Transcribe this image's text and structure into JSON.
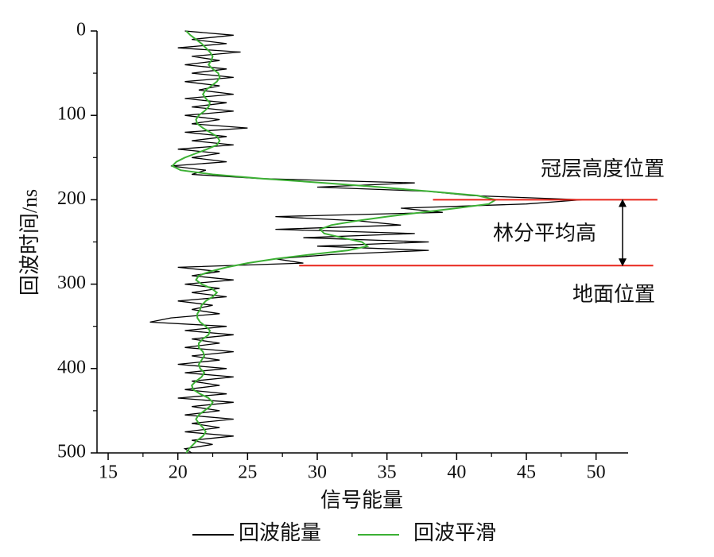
{
  "chart_data": {
    "type": "line",
    "xlabel": "信号能量",
    "ylabel": "回波时间/ns",
    "xlim": [
      14.2,
      52.3
    ],
    "xticks": [
      15,
      20,
      25,
      30,
      35,
      40,
      45,
      50
    ],
    "xminor": [
      17.5,
      22.5,
      27.5,
      32.5,
      37.5,
      42.5,
      47.5
    ],
    "ylim": [
      0,
      500
    ],
    "yticks": [
      0,
      100,
      200,
      300,
      400,
      500
    ],
    "yminor": [
      50,
      150,
      250,
      350,
      450
    ],
    "y_inverted": true,
    "y": [
      0,
      5,
      10,
      15,
      20,
      25,
      30,
      35,
      40,
      45,
      50,
      55,
      60,
      65,
      70,
      75,
      80,
      85,
      90,
      95,
      100,
      105,
      110,
      115,
      120,
      125,
      130,
      135,
      140,
      145,
      150,
      155,
      160,
      165,
      170,
      175,
      180,
      185,
      190,
      195,
      200,
      205,
      210,
      215,
      220,
      225,
      230,
      235,
      240,
      245,
      250,
      255,
      260,
      265,
      270,
      275,
      280,
      285,
      290,
      295,
      300,
      305,
      310,
      315,
      320,
      325,
      330,
      335,
      340,
      345,
      350,
      355,
      360,
      365,
      370,
      375,
      380,
      385,
      390,
      395,
      400,
      405,
      410,
      415,
      420,
      425,
      430,
      435,
      440,
      445,
      450,
      455,
      460,
      465,
      470,
      475,
      480,
      485,
      490,
      495,
      500
    ],
    "series": [
      {
        "name": "回波能量",
        "color": "#000000",
        "values": [
          20.5,
          24,
          21,
          23.5,
          20,
          24.5,
          21,
          23,
          20.5,
          23.5,
          21,
          24,
          20.5,
          23,
          21.5,
          24,
          20.5,
          23.5,
          21,
          24,
          20.5,
          23,
          21,
          25,
          20.5,
          23.5,
          21,
          24,
          20,
          23,
          21,
          23.5,
          19.5,
          22,
          21,
          26,
          37,
          30,
          38,
          41,
          49,
          45,
          36,
          39,
          27,
          33,
          36,
          27,
          37,
          29,
          38,
          30,
          38,
          31,
          27,
          29,
          20,
          23,
          21,
          24,
          20.5,
          23,
          21,
          23.5,
          20,
          22.5,
          21,
          23,
          19.5,
          18,
          23.5,
          20.5,
          24,
          21,
          23,
          20.5,
          24,
          21,
          23,
          20,
          23.5,
          20.5,
          24,
          21,
          23,
          20.5,
          23.5,
          20,
          24,
          21,
          23,
          20.5,
          24,
          21,
          23,
          20.5,
          24,
          21,
          22.5,
          20.5,
          21
        ]
      },
      {
        "name": "回波平滑",
        "color": "#3cb034",
        "values": [
          20.6,
          20.9,
          21.3,
          21.7,
          22,
          22.3,
          22.5,
          22.4,
          22.2,
          22.5,
          22.9,
          23,
          22.8,
          22.4,
          22,
          21.8,
          22,
          22.3,
          22.2,
          21.9,
          21.5,
          21.3,
          21.4,
          21.8,
          22.3,
          22.8,
          23,
          22.8,
          22.1,
          21.3,
          20.5,
          19.9,
          19.6,
          20.2,
          22.5,
          26,
          30.5,
          34.5,
          38,
          41.5,
          42.8,
          42.3,
          40,
          37.5,
          35,
          32.8,
          31,
          30.2,
          30.5,
          31.8,
          33.2,
          33.6,
          32.2,
          29.5,
          27,
          25,
          23.5,
          22.3,
          21.5,
          21.3,
          21.7,
          22.4,
          22.8,
          22.5,
          22,
          21.7,
          21.6,
          21.4,
          21.4,
          21.6,
          22,
          22.3,
          22.2,
          21.8,
          21.5,
          21.5,
          21.8,
          21.9,
          21.7,
          21.5,
          21.6,
          21.9,
          21.7,
          21.3,
          21,
          21.1,
          21.6,
          22.2,
          22.5,
          22.3,
          21.9,
          21.5,
          21.3,
          21.5,
          21.8,
          22,
          21.8,
          21.4,
          21.1,
          20.8,
          20.6
        ]
      }
    ],
    "reference_lines": [
      {
        "label": "冠层高度位置",
        "y": 200,
        "x": [
          38.3,
          54.4
        ],
        "color": "#e8261c"
      },
      {
        "label": "地面位置",
        "y": 278,
        "x": [
          28.7,
          54.1
        ],
        "color": "#e8261c"
      }
    ],
    "height_annotation": {
      "label": "林分平均高",
      "x": 51.9,
      "y": [
        200,
        278
      ]
    }
  }
}
